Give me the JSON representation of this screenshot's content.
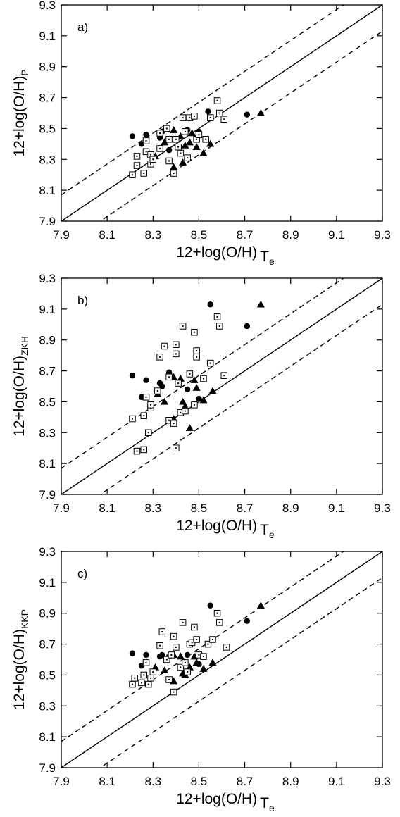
{
  "chart_data": [
    {
      "type": "scatter",
      "panel_label": "a)",
      "xlabel": {
        "main": "12+log(O/H)",
        "sub": "T",
        "subsub": "e"
      },
      "ylabel": {
        "main": "12+log(O/H)",
        "sub": "P"
      },
      "xlim": [
        7.9,
        9.3
      ],
      "ylim": [
        7.9,
        9.3
      ],
      "xticks": [
        "7.9",
        "8.1",
        "8.3",
        "8.5",
        "8.7",
        "8.9",
        "9.1",
        "9.3"
      ],
      "yticks": [
        "7.9",
        "8.1",
        "8.3",
        "8.5",
        "8.7",
        "8.9",
        "9.1",
        "9.3"
      ],
      "reference_lines": [
        {
          "style": "solid",
          "slope": 1,
          "offset": 0
        },
        {
          "style": "dashed",
          "slope": 1,
          "offset": 0.17
        },
        {
          "style": "dashed",
          "slope": 1,
          "offset": -0.17
        }
      ],
      "series": [
        {
          "marker": "circle",
          "points": [
            [
              8.21,
              8.45
            ],
            [
              8.25,
              8.4
            ],
            [
              8.27,
              8.46
            ],
            [
              8.33,
              8.44
            ],
            [
              8.34,
              8.48
            ],
            [
              8.37,
              8.36
            ],
            [
              8.45,
              8.49
            ],
            [
              8.5,
              8.48
            ],
            [
              8.54,
              8.61
            ],
            [
              8.71,
              8.59
            ]
          ]
        },
        {
          "marker": "triangle",
          "points": [
            [
              8.31,
              8.32
            ],
            [
              8.35,
              8.41
            ],
            [
              8.39,
              8.49
            ],
            [
              8.39,
              8.25
            ],
            [
              8.42,
              8.45
            ],
            [
              8.43,
              8.28
            ],
            [
              8.44,
              8.39
            ],
            [
              8.46,
              8.41
            ],
            [
              8.47,
              8.47
            ],
            [
              8.49,
              8.38
            ],
            [
              8.52,
              8.34
            ],
            [
              8.55,
              8.4
            ],
            [
              8.77,
              8.6
            ]
          ]
        },
        {
          "marker": "open-square",
          "points": [
            [
              8.21,
              8.2
            ],
            [
              8.23,
              8.26
            ],
            [
              8.23,
              8.32
            ],
            [
              8.26,
              8.21
            ],
            [
              8.27,
              8.35
            ],
            [
              8.27,
              8.42
            ],
            [
              8.29,
              8.27
            ],
            [
              8.29,
              8.33
            ],
            [
              8.3,
              8.3
            ],
            [
              8.33,
              8.37
            ],
            [
              8.33,
              8.47
            ],
            [
              8.36,
              8.5
            ],
            [
              8.37,
              8.29
            ],
            [
              8.37,
              8.43
            ],
            [
              8.39,
              8.21
            ],
            [
              8.4,
              8.43
            ],
            [
              8.41,
              8.38
            ],
            [
              8.42,
              8.34
            ],
            [
              8.43,
              8.57
            ],
            [
              8.44,
              8.48
            ],
            [
              8.45,
              8.31
            ],
            [
              8.46,
              8.57
            ],
            [
              8.48,
              8.58
            ],
            [
              8.49,
              8.43
            ],
            [
              8.5,
              8.46
            ],
            [
              8.53,
              8.43
            ],
            [
              8.55,
              8.57
            ],
            [
              8.58,
              8.68
            ],
            [
              8.59,
              8.6
            ],
            [
              8.61,
              8.56
            ]
          ]
        }
      ]
    },
    {
      "type": "scatter",
      "panel_label": "b)",
      "xlabel": {
        "main": "12+log(O/H)",
        "sub": "T",
        "subsub": "e"
      },
      "ylabel": {
        "main": "12+log(O/H)",
        "sub": "ZKH"
      },
      "xlim": [
        7.9,
        9.3
      ],
      "ylim": [
        7.9,
        9.3
      ],
      "xticks": [
        "7.9",
        "8.1",
        "8.3",
        "8.5",
        "8.7",
        "8.9",
        "9.1",
        "9.3"
      ],
      "yticks": [
        "7.9",
        "8.1",
        "8.3",
        "8.5",
        "8.7",
        "8.9",
        "9.1",
        "9.3"
      ],
      "reference_lines": [
        {
          "style": "solid",
          "slope": 1,
          "offset": 0
        },
        {
          "style": "dashed",
          "slope": 1,
          "offset": 0.17
        },
        {
          "style": "dashed",
          "slope": 1,
          "offset": -0.17
        }
      ],
      "series": [
        {
          "marker": "circle",
          "points": [
            [
              8.21,
              8.67
            ],
            [
              8.25,
              8.53
            ],
            [
              8.27,
              8.64
            ],
            [
              8.33,
              8.62
            ],
            [
              8.34,
              8.6
            ],
            [
              8.37,
              8.69
            ],
            [
              8.45,
              8.58
            ],
            [
              8.5,
              8.52
            ],
            [
              8.55,
              9.13
            ],
            [
              8.71,
              8.99
            ]
          ]
        },
        {
          "marker": "triangle",
          "points": [
            [
              8.32,
              8.55
            ],
            [
              8.35,
              8.5
            ],
            [
              8.39,
              8.66
            ],
            [
              8.39,
              8.39
            ],
            [
              8.42,
              8.65
            ],
            [
              8.43,
              8.5
            ],
            [
              8.44,
              8.47
            ],
            [
              8.46,
              8.33
            ],
            [
              8.48,
              8.64
            ],
            [
              8.49,
              8.59
            ],
            [
              8.52,
              8.51
            ],
            [
              8.56,
              8.57
            ],
            [
              8.77,
              9.13
            ]
          ]
        },
        {
          "marker": "open-square",
          "points": [
            [
              8.21,
              8.39
            ],
            [
              8.23,
              8.18
            ],
            [
              8.26,
              8.19
            ],
            [
              8.26,
              8.41
            ],
            [
              8.27,
              8.53
            ],
            [
              8.28,
              8.3
            ],
            [
              8.29,
              8.46
            ],
            [
              8.29,
              8.48
            ],
            [
              8.32,
              8.57
            ],
            [
              8.33,
              8.79
            ],
            [
              8.35,
              8.86
            ],
            [
              8.37,
              8.38
            ],
            [
              8.37,
              8.66
            ],
            [
              8.39,
              8.36
            ],
            [
              8.4,
              8.2
            ],
            [
              8.4,
              8.81
            ],
            [
              8.4,
              8.87
            ],
            [
              8.41,
              8.62
            ],
            [
              8.42,
              8.43
            ],
            [
              8.43,
              8.99
            ],
            [
              8.44,
              8.44
            ],
            [
              8.46,
              8.68
            ],
            [
              8.48,
              8.48
            ],
            [
              8.48,
              8.95
            ],
            [
              8.49,
              8.79
            ],
            [
              8.49,
              8.83
            ],
            [
              8.52,
              8.65
            ],
            [
              8.55,
              8.75
            ],
            [
              8.58,
              9.05
            ],
            [
              8.59,
              8.99
            ],
            [
              8.61,
              8.67
            ]
          ]
        }
      ]
    },
    {
      "type": "scatter",
      "panel_label": "c)",
      "xlabel": {
        "main": "12+log(O/H)",
        "sub": "T",
        "subsub": "e"
      },
      "ylabel": {
        "main": "12+log(O/H)",
        "sub": "KKP"
      },
      "xlim": [
        7.9,
        9.3
      ],
      "ylim": [
        7.9,
        9.3
      ],
      "xticks": [
        "7.9",
        "8.1",
        "8.3",
        "8.5",
        "8.7",
        "8.9",
        "9.1",
        "9.3"
      ],
      "yticks": [
        "7.9",
        "8.1",
        "8.3",
        "8.5",
        "8.7",
        "8.9",
        "9.1",
        "9.3"
      ],
      "reference_lines": [
        {
          "style": "solid",
          "slope": 1,
          "offset": 0
        },
        {
          "style": "dashed",
          "slope": 1,
          "offset": 0.17
        },
        {
          "style": "dashed",
          "slope": 1,
          "offset": -0.17
        }
      ],
      "series": [
        {
          "marker": "circle",
          "points": [
            [
              8.21,
              8.64
            ],
            [
              8.25,
              8.56
            ],
            [
              8.27,
              8.63
            ],
            [
              8.33,
              8.62
            ],
            [
              8.34,
              8.63
            ],
            [
              8.37,
              8.62
            ],
            [
              8.45,
              8.63
            ],
            [
              8.5,
              8.57
            ],
            [
              8.55,
              8.95
            ],
            [
              8.71,
              8.85
            ]
          ]
        },
        {
          "marker": "triangle",
          "points": [
            [
              8.31,
              8.55
            ],
            [
              8.35,
              8.53
            ],
            [
              8.39,
              8.63
            ],
            [
              8.39,
              8.46
            ],
            [
              8.42,
              8.62
            ],
            [
              8.43,
              8.51
            ],
            [
              8.44,
              8.5
            ],
            [
              8.46,
              8.55
            ],
            [
              8.48,
              8.62
            ],
            [
              8.49,
              8.58
            ],
            [
              8.52,
              8.54
            ],
            [
              8.56,
              8.58
            ],
            [
              8.77,
              8.95
            ]
          ]
        },
        {
          "marker": "open-square",
          "points": [
            [
              8.21,
              8.44
            ],
            [
              8.22,
              8.48
            ],
            [
              8.25,
              8.45
            ],
            [
              8.26,
              8.5
            ],
            [
              8.27,
              8.58
            ],
            [
              8.28,
              8.44
            ],
            [
              8.29,
              8.48
            ],
            [
              8.3,
              8.52
            ],
            [
              8.33,
              8.69
            ],
            [
              8.34,
              8.78
            ],
            [
              8.36,
              8.6
            ],
            [
              8.37,
              8.47
            ],
            [
              8.38,
              8.63
            ],
            [
              8.39,
              8.75
            ],
            [
              8.39,
              8.39
            ],
            [
              8.4,
              8.68
            ],
            [
              8.42,
              8.55
            ],
            [
              8.43,
              8.84
            ],
            [
              8.44,
              8.58
            ],
            [
              8.45,
              8.52
            ],
            [
              8.46,
              8.7
            ],
            [
              8.47,
              8.71
            ],
            [
              8.48,
              8.81
            ],
            [
              8.49,
              8.73
            ],
            [
              8.5,
              8.63
            ],
            [
              8.52,
              8.62
            ],
            [
              8.54,
              8.7
            ],
            [
              8.56,
              8.73
            ],
            [
              8.58,
              8.9
            ],
            [
              8.59,
              8.84
            ],
            [
              8.62,
              8.68
            ]
          ]
        }
      ]
    }
  ]
}
